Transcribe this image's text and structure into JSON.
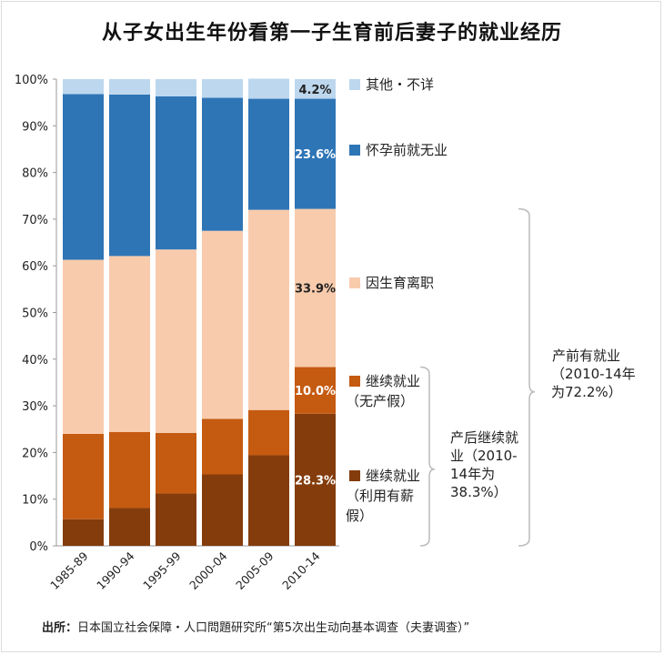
{
  "chart_data": {
    "type": "bar",
    "stacked": true,
    "title": "从子女出生年份看第一子生育前后妻子的就业经历",
    "categories": [
      "1985-89",
      "1990-94",
      "1995-99",
      "2000-04",
      "2005-09",
      "2010-14"
    ],
    "ylim": [
      0,
      100
    ],
    "yticks": [
      "0%",
      "10%",
      "20%",
      "30%",
      "40%",
      "50%",
      "60%",
      "70%",
      "80%",
      "90%",
      "100%"
    ],
    "grid": false,
    "series": [
      {
        "name": "继续就业（利用有薪假）",
        "color": "#843C0C",
        "values": [
          5.7,
          8.1,
          11.2,
          15.3,
          19.4,
          28.3
        ],
        "label_last": "28.3%"
      },
      {
        "name": "继续就业（无产假）",
        "color": "#C55A11",
        "values": [
          18.3,
          16.3,
          13.0,
          11.9,
          9.7,
          10.0
        ],
        "label_last": "10.0%"
      },
      {
        "name": "因生育离职",
        "color": "#F8CBAD",
        "values": [
          37.3,
          37.7,
          39.3,
          40.3,
          42.9,
          33.9
        ],
        "label_last": "33.9%"
      },
      {
        "name": "怀孕前就无业",
        "color": "#2E75B6",
        "values": [
          35.5,
          34.6,
          32.8,
          28.5,
          23.8,
          23.6
        ],
        "label_last": "23.6%"
      },
      {
        "name": "其他・不详",
        "color": "#BDD7EE",
        "values": [
          3.2,
          3.3,
          3.7,
          4.0,
          4.3,
          4.2
        ],
        "label_last": "4.2%"
      }
    ],
    "legend": [
      {
        "lines": [
          "其他・不详"
        ],
        "color": "#BDD7EE"
      },
      {
        "lines": [
          "怀孕前就无业"
        ],
        "color": "#2E75B6"
      },
      {
        "lines": [
          "因生育离职"
        ],
        "color": "#F8CBAD"
      },
      {
        "lines": [
          "继续就业",
          "（无产假）"
        ],
        "color": "#C55A11"
      },
      {
        "lines": [
          "继续就业",
          "（利用有薪",
          "假）"
        ],
        "color": "#843C0C"
      }
    ],
    "annotations": [
      {
        "lines": [
          "产后继续就",
          "业（2010-",
          "14年为",
          "38.3%）"
        ]
      },
      {
        "lines": [
          "产前有就业",
          "（2010-14年",
          "为72.2%）"
        ]
      }
    ]
  },
  "source": {
    "label": "出所：",
    "text": "日本国立社会保障・人口問題研究所“第5次出生动向基本调查（夫妻调查）”"
  }
}
